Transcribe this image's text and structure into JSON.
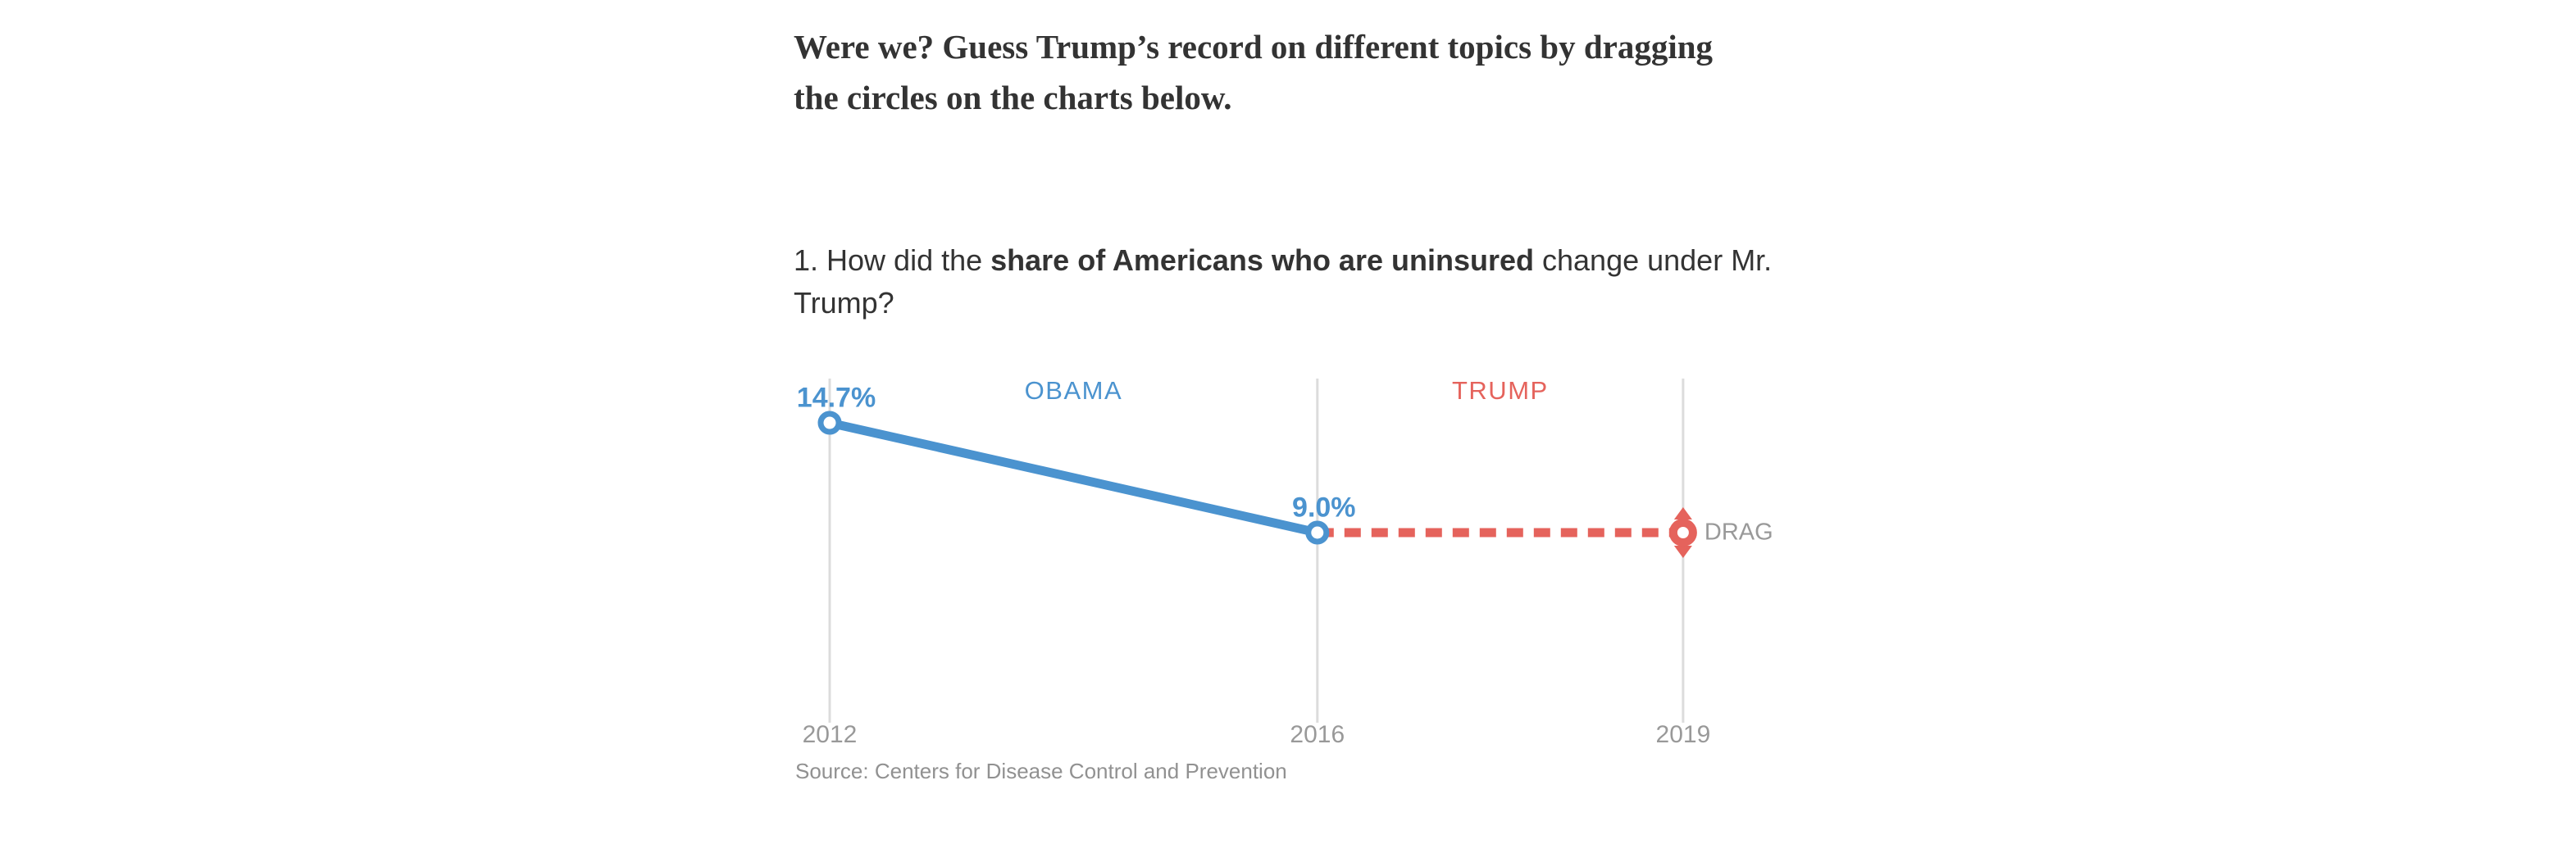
{
  "header": {
    "title_line1": "Were we? Guess Trump’s record on different topics by dragging",
    "title_line2": "the circles on the charts below."
  },
  "question": {
    "prefix": "1. How did the ",
    "topic_bold": "share of Americans who are uninsured",
    "suffix": " change under Mr.",
    "line2": "Trump?"
  },
  "chart_data": {
    "type": "line",
    "title": "",
    "xlabel": "",
    "ylabel": "",
    "x_ticks": [
      "2012",
      "2016",
      "2019"
    ],
    "x_years": [
      2012,
      2016,
      2019
    ],
    "ylim": [
      0,
      17
    ],
    "grid": "vertical-gridlines-only",
    "legend_position": "none",
    "series": [
      {
        "name": "uninsured-rate-actual",
        "style": "solid",
        "color": "#4b93cf",
        "x": [
          2012,
          2016
        ],
        "values": [
          14.7,
          9.0
        ],
        "point_labels": [
          "14.7%",
          "9.0%"
        ]
      },
      {
        "name": "reader-guess-draggable",
        "style": "dashed",
        "color": "#e5635c",
        "x": [
          2016,
          2019
        ],
        "values": [
          9.0,
          9.0
        ],
        "point_labels": []
      }
    ],
    "era_labels": [
      {
        "label": "OBAMA",
        "color": "#4b93cf",
        "from_year": 2012,
        "to_year": 2016
      },
      {
        "label": "TRUMP",
        "color": "#e5635c",
        "from_year": 2016,
        "to_year": 2019
      }
    ],
    "drag_hint": "DRAG",
    "source": "Source: Centers for Disease Control and Prevention"
  },
  "colors": {
    "obama_blue": "#4b93cf",
    "trump_red": "#e5635c",
    "gridline": "#dcdcdc",
    "axis_text": "#999999",
    "source_text": "#919191",
    "drag_text": "#999999",
    "body_text": "#333333",
    "background": "#ffffff"
  }
}
